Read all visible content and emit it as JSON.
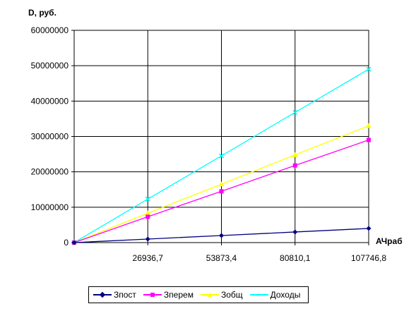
{
  "chart_data": {
    "type": "line",
    "ylabel": "D, руб.",
    "xlabel": "АЧраб",
    "x": [
      0,
      26936.7,
      53873.4,
      80810.1,
      107746.8
    ],
    "x_tick_labels": [
      "26936,7",
      "53873,4",
      "80810,1",
      "107746,8"
    ],
    "y_tick_labels": [
      "0",
      "10000000",
      "20000000",
      "30000000",
      "40000000",
      "50000000",
      "60000000"
    ],
    "ylim": [
      0,
      60000000
    ],
    "grid": true,
    "legend_position": "bottom",
    "series": [
      {
        "name": "Зпост",
        "color": "#000080",
        "marker": "diamond",
        "values": [
          0,
          1000000,
          2000000,
          3000000,
          4000000
        ]
      },
      {
        "name": "Зперем",
        "color": "#ff00ff",
        "marker": "square",
        "values": [
          0,
          7300000,
          14500000,
          21800000,
          29000000
        ]
      },
      {
        "name": "Зобщ",
        "color": "#ffff00",
        "marker": "triangle",
        "values": [
          0,
          8300000,
          16500000,
          24800000,
          33000000
        ]
      },
      {
        "name": "Доходы",
        "color": "#00ffff",
        "marker": "x",
        "values": [
          0,
          12300000,
          24500000,
          36800000,
          49000000
        ]
      }
    ]
  }
}
